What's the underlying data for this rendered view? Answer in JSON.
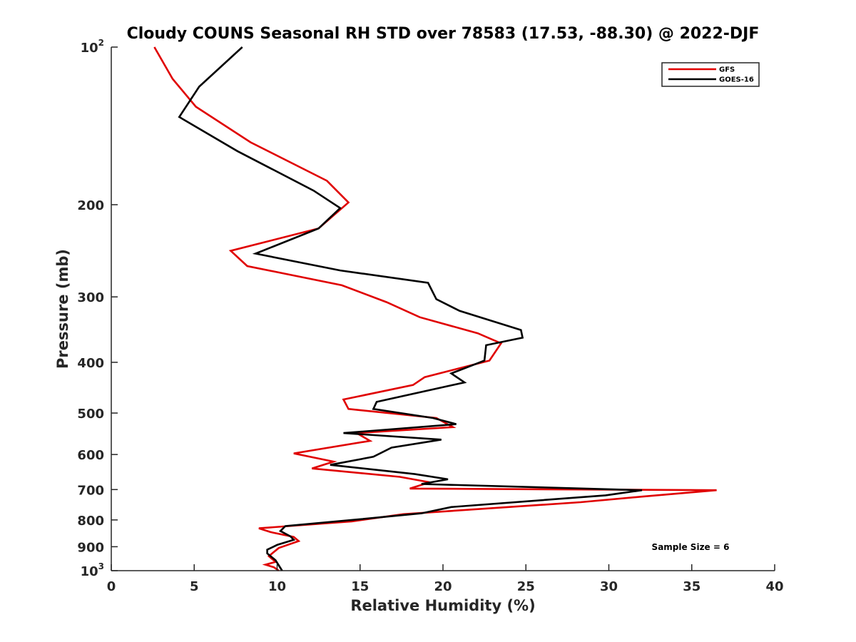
{
  "chart_data": {
    "type": "line",
    "title": "Cloudy COUNS Seasonal RH STD over 78583 (17.53, -88.30) @ 2022-DJF",
    "xlabel": "Relative Humidity (%)",
    "ylabel": "Pressure (mb)",
    "xlim": [
      0,
      40
    ],
    "ylim": [
      100,
      1000
    ],
    "y_scale": "log",
    "y_reversed": true,
    "x_ticks": [
      0,
      5,
      10,
      15,
      20,
      25,
      30,
      35,
      40
    ],
    "x_tick_labels": [
      "0",
      "5",
      "10",
      "15",
      "20",
      "25",
      "30",
      "35",
      "40"
    ],
    "y_ticks": [
      100,
      200,
      300,
      400,
      500,
      600,
      700,
      800,
      900,
      1000
    ],
    "y_tick_labels": [
      {
        "base": "10",
        "sup": "2"
      },
      {
        "base": "200",
        "sup": ""
      },
      {
        "base": "300",
        "sup": ""
      },
      {
        "base": "400",
        "sup": ""
      },
      {
        "base": "500",
        "sup": ""
      },
      {
        "base": "600",
        "sup": ""
      },
      {
        "base": "700",
        "sup": ""
      },
      {
        "base": "800",
        "sup": ""
      },
      {
        "base": "900",
        "sup": ""
      },
      {
        "base": "10",
        "sup": "3"
      }
    ],
    "grid": false,
    "legend_position": "top-right",
    "annotation": "Sample Size = 6",
    "series": [
      {
        "name": "GFS",
        "color": "#e00000",
        "points": [
          [
            2.6,
            100
          ],
          [
            3.7,
            115
          ],
          [
            5.1,
            130
          ],
          [
            8.4,
            152
          ],
          [
            13.0,
            180
          ],
          [
            14.3,
            198
          ],
          [
            12.5,
            222
          ],
          [
            7.2,
            245
          ],
          [
            8.2,
            262
          ],
          [
            13.9,
            285
          ],
          [
            16.6,
            307
          ],
          [
            18.6,
            328
          ],
          [
            22.1,
            352
          ],
          [
            23.5,
            368
          ],
          [
            22.8,
            397
          ],
          [
            18.9,
            427
          ],
          [
            18.2,
            442
          ],
          [
            14.0,
            471
          ],
          [
            14.3,
            491
          ],
          [
            19.6,
            511
          ],
          [
            20.6,
            532
          ],
          [
            14.8,
            546
          ],
          [
            15.6,
            565
          ],
          [
            11.0,
            597
          ],
          [
            13.4,
            619
          ],
          [
            12.1,
            638
          ],
          [
            17.4,
            662
          ],
          [
            19.2,
            678
          ],
          [
            18.0,
            697
          ],
          [
            36.5,
            702
          ],
          [
            32.0,
            722
          ],
          [
            28.3,
            740
          ],
          [
            17.6,
            780
          ],
          [
            14.5,
            805
          ],
          [
            8.9,
            830
          ],
          [
            9.6,
            844
          ],
          [
            11.0,
            862
          ],
          [
            11.3,
            878
          ],
          [
            10.1,
            905
          ],
          [
            9.5,
            938
          ],
          [
            9.7,
            950
          ],
          [
            9.9,
            962
          ],
          [
            9.3,
            974
          ],
          [
            9.8,
            985
          ],
          [
            10.1,
            1000
          ]
        ]
      },
      {
        "name": "GOES-16",
        "color": "#000000",
        "points": [
          [
            7.9,
            100
          ],
          [
            5.3,
            119
          ],
          [
            4.1,
            136
          ],
          [
            7.6,
            158
          ],
          [
            12.2,
            188
          ],
          [
            13.8,
            203
          ],
          [
            12.5,
            222
          ],
          [
            8.7,
            248
          ],
          [
            13.8,
            267
          ],
          [
            19.1,
            282
          ],
          [
            19.6,
            303
          ],
          [
            21.0,
            319
          ],
          [
            24.7,
            347
          ],
          [
            24.8,
            359
          ],
          [
            22.6,
            371
          ],
          [
            22.5,
            397
          ],
          [
            20.5,
            420
          ],
          [
            21.3,
            437
          ],
          [
            16.0,
            476
          ],
          [
            15.8,
            491
          ],
          [
            19.4,
            511
          ],
          [
            20.8,
            525
          ],
          [
            14.0,
            546
          ],
          [
            19.9,
            562
          ],
          [
            16.9,
            582
          ],
          [
            15.8,
            606
          ],
          [
            13.2,
            628
          ],
          [
            18.3,
            654
          ],
          [
            20.3,
            669
          ],
          [
            18.7,
            683
          ],
          [
            32.0,
            702
          ],
          [
            29.8,
            718
          ],
          [
            20.5,
            756
          ],
          [
            18.7,
            777
          ],
          [
            15.1,
            797
          ],
          [
            10.5,
            822
          ],
          [
            10.2,
            840
          ],
          [
            10.8,
            860
          ],
          [
            11.0,
            873
          ],
          [
            10.0,
            893
          ],
          [
            9.4,
            912
          ],
          [
            9.4,
            927
          ],
          [
            9.9,
            955
          ],
          [
            10.3,
            1000
          ]
        ]
      }
    ]
  }
}
